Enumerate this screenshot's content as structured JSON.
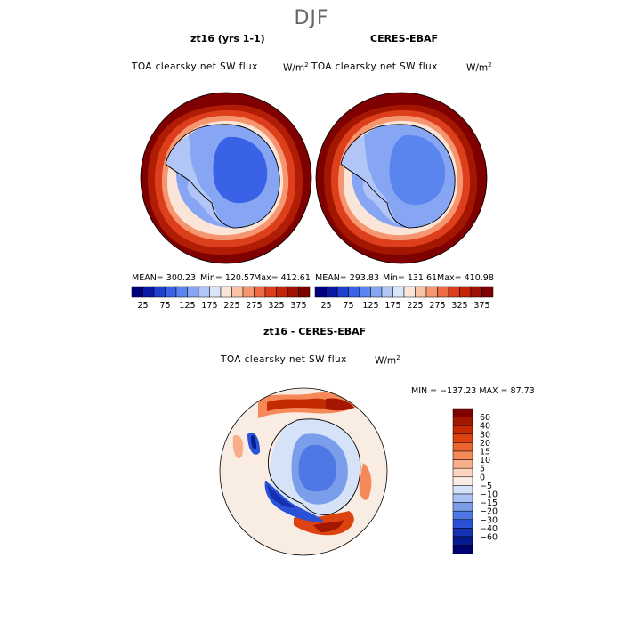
{
  "figure": {
    "season": "DJF",
    "variable_label": "TOA clearsky net SW flux",
    "units": "W/m",
    "units_exp": "2"
  },
  "panels": {
    "model": {
      "title": "zt16 (yrs 1-1)",
      "mean": "MEAN= 300.23",
      "min": "Min= 120.57",
      "max": "Max= 412.61"
    },
    "obs": {
      "title": "CERES-EBAF",
      "mean": "MEAN= 293.83",
      "min": "Min= 131.61",
      "max": "Max= 410.98"
    },
    "diff": {
      "title": "zt16 - CERES-EBAF",
      "minmax": "MIN = −137.23  MAX =  87.73"
    }
  },
  "chart_data": [
    {
      "type": "heatmap",
      "title": "zt16 (yrs 1-1)",
      "projection": "south polar stereographic",
      "subtitle": "TOA clearsky net SW flux",
      "units": "W/m2",
      "mean": 300.23,
      "min": 120.57,
      "max": 412.61,
      "colorbar": {
        "levels": [
          25,
          75,
          125,
          175,
          225,
          275,
          325,
          375
        ],
        "colors": [
          "#00007f",
          "#0a1aa6",
          "#1f3fd0",
          "#3a62e6",
          "#5b85ee",
          "#86a6f3",
          "#b1c6f6",
          "#d9e5f9",
          "#fbe5d8",
          "#fac3a6",
          "#f69670",
          "#ee6a42",
          "#dd3f1c",
          "#c42508",
          "#a01302",
          "#7f0000"
        ]
      }
    },
    {
      "type": "heatmap",
      "title": "CERES-EBAF",
      "projection": "south polar stereographic",
      "subtitle": "TOA clearsky net SW flux",
      "units": "W/m2",
      "mean": 293.83,
      "min": 131.61,
      "max": 410.98,
      "colorbar": {
        "levels": [
          25,
          75,
          125,
          175,
          225,
          275,
          325,
          375
        ],
        "colors": [
          "#00007f",
          "#0a1aa6",
          "#1f3fd0",
          "#3a62e6",
          "#5b85ee",
          "#86a6f3",
          "#b1c6f6",
          "#d9e5f9",
          "#fbe5d8",
          "#fac3a6",
          "#f69670",
          "#ee6a42",
          "#dd3f1c",
          "#c42508",
          "#a01302",
          "#7f0000"
        ]
      }
    },
    {
      "type": "heatmap",
      "title": "zt16 - CERES-EBAF",
      "projection": "south polar stereographic",
      "subtitle": "TOA clearsky net SW flux",
      "units": "W/m2",
      "min": -137.23,
      "max": 87.73,
      "colorbar": {
        "levels": [
          "60",
          "40",
          "30",
          "20",
          "15",
          "10",
          "5",
          "0",
          "−5",
          "−10",
          "−15",
          "−20",
          "−30",
          "−40",
          "−60"
        ],
        "colors": [
          "#7f0000",
          "#a31600",
          "#c42a02",
          "#dc4310",
          "#ee6430",
          "#f6895a",
          "#f9ae8a",
          "#fbd4bd",
          "#f9ece2",
          "#d6e2f8",
          "#aac3f2",
          "#7a9eea",
          "#4f78e4",
          "#2a51d6",
          "#1331b0",
          "#051c8f",
          "#000070"
        ]
      }
    }
  ]
}
